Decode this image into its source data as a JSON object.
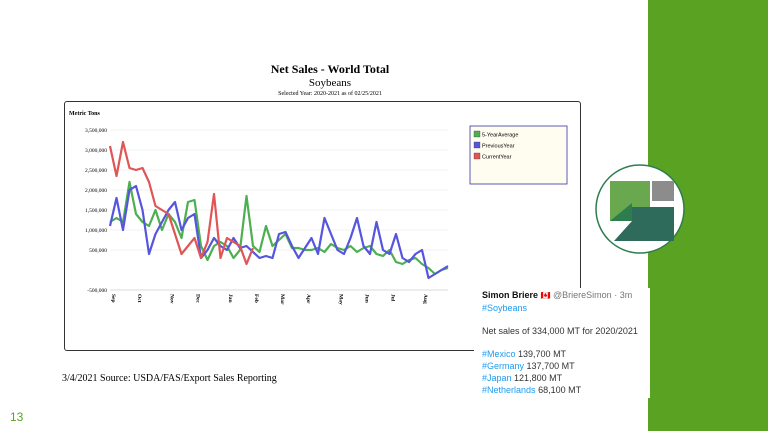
{
  "slide": {
    "page_number": "13",
    "source": "3/4/2021 Source: USDA/FAS/Export Sales Reporting",
    "accent_color": "#5aa322"
  },
  "tweet": {
    "name": "Simon Briere",
    "flag": "🇨🇦",
    "handle": "@BriereSimon",
    "time": "· 3m",
    "hashtag": "#Soybeans",
    "body": "Net sales of 334,000 MT for 2020/2021",
    "countries": [
      {
        "tag": "#Mexico",
        "value": "139,700 MT"
      },
      {
        "tag": "#Germany",
        "value": "137,700 MT"
      },
      {
        "tag": "#Japan",
        "value": "121,800 MT"
      },
      {
        "tag": "#Netherlands",
        "value": "68,100 MT"
      }
    ]
  },
  "chart_data": {
    "type": "line",
    "title": "Net Sales - World Total",
    "subtitle": "Soybeans",
    "note": "Selected Year: 2020-2021 as of 02/25/2021",
    "ylabel": "Metric Tons",
    "ylim": [
      -500000,
      3500000
    ],
    "yticks": [
      "-500,000",
      "500,000",
      "1,000,000",
      "1,500,000",
      "2,000,000",
      "2,500,000",
      "3,000,000",
      "3,500,000"
    ],
    "ytick_values": [
      -500000,
      500000,
      1000000,
      1500000,
      2000000,
      2500000,
      3000000,
      3500000
    ],
    "month_labels": [
      {
        "label": "Sep",
        "week": 0
      },
      {
        "label": "Oct",
        "week": 4
      },
      {
        "label": "Nov",
        "week": 9
      },
      {
        "label": "Dec",
        "week": 13
      },
      {
        "label": "Jan",
        "week": 18
      },
      {
        "label": "Feb",
        "week": 22
      },
      {
        "label": "Mar",
        "week": 26
      },
      {
        "label": "Apr",
        "week": 30
      },
      {
        "label": "May",
        "week": 35
      },
      {
        "label": "Jun",
        "week": 39
      },
      {
        "label": "Jul",
        "week": 43
      },
      {
        "label": "Aug",
        "week": 48
      }
    ],
    "weeks": 53,
    "legend_position": "top-right",
    "series": [
      {
        "name": "5-YearAverage",
        "color": "#4caf50",
        "values": [
          1200000,
          1300000,
          1200000,
          2200000,
          1400000,
          1200000,
          1100000,
          1500000,
          1000000,
          1400000,
          1200000,
          800000,
          1700000,
          1750000,
          600000,
          250000,
          600000,
          700000,
          600000,
          300000,
          500000,
          1850000,
          600000,
          450000,
          1100000,
          600000,
          750000,
          900000,
          550000,
          550000,
          500000,
          500000,
          550000,
          450000,
          650000,
          550000,
          500000,
          600000,
          450000,
          550000,
          600000,
          400000,
          350000,
          500000,
          200000,
          150000,
          250000,
          300000,
          150000,
          50000,
          -100000,
          0,
          50000
        ]
      },
      {
        "name": "PreviousYear",
        "color": "#5555dd",
        "values": [
          1100000,
          1800000,
          1000000,
          2000000,
          2100000,
          1500000,
          400000,
          900000,
          1200000,
          1500000,
          1700000,
          1000000,
          1300000,
          1400000,
          300000,
          500000,
          800000,
          600000,
          500000,
          800000,
          550000,
          600000,
          450000,
          300000,
          350000,
          300000,
          900000,
          950000,
          600000,
          300000,
          550000,
          800000,
          400000,
          1300000,
          900000,
          500000,
          400000,
          800000,
          1300000,
          600000,
          400000,
          1200000,
          500000,
          400000,
          900000,
          300000,
          200000,
          400000,
          500000,
          -200000,
          -100000,
          0,
          100000
        ]
      },
      {
        "name": "CurrentYear",
        "color": "#e05555",
        "values": [
          3100000,
          2350000,
          3200000,
          2550000,
          2500000,
          2550000,
          2200000,
          1600000,
          1500000,
          1400000,
          900000,
          400000,
          600000,
          800000,
          300000,
          700000,
          1900000,
          300000,
          800000,
          700000,
          600000,
          150000,
          550000
        ]
      }
    ]
  }
}
